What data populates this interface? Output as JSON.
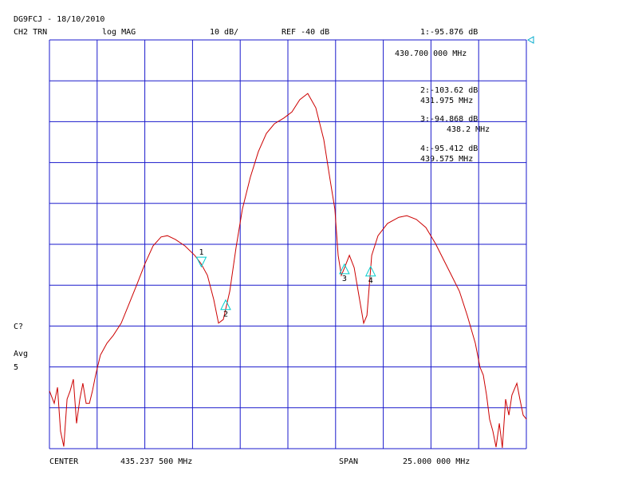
{
  "chart_data": {
    "type": "line",
    "header": "DG9FCJ - 18/10/2010",
    "channel": "CH2 TRN",
    "format": "log MAG",
    "scale": "10 dB/",
    "reference": "REF -40 dB",
    "center_label": "CENTER",
    "center_value": "435.237 500 MHz",
    "span_label": "SPAN",
    "span_value": "25.000 000 MHz",
    "side_labels": [
      "C?",
      "Avg",
      "5"
    ],
    "color": "#cc0000",
    "grid_color": "#1a1acc",
    "marker_color": "#00cccc",
    "grid": true,
    "xlim": [
      422.7375,
      447.7375
    ],
    "ylim": [
      -140,
      -40
    ],
    "xticks": [
      422.7375,
      425.2375,
      427.7375,
      430.2375,
      432.7375,
      435.2375,
      437.7375,
      440.2375,
      442.7375,
      445.2375,
      447.7375
    ],
    "yticks": [
      -140,
      -130,
      -120,
      -110,
      -100,
      -90,
      -80,
      -70,
      -60,
      -50,
      -40
    ],
    "x": [
      422.74,
      422.99,
      423.16,
      423.32,
      423.49,
      423.66,
      423.82,
      423.99,
      424.16,
      424.33,
      424.49,
      424.66,
      424.83,
      424.99,
      425.16,
      425.41,
      425.75,
      426.08,
      426.5,
      426.92,
      427.34,
      427.75,
      428.17,
      428.59,
      428.92,
      429.34,
      429.84,
      430.35,
      430.68,
      431.02,
      431.35,
      431.6,
      431.85,
      432.19,
      432.52,
      432.85,
      433.27,
      433.69,
      434.11,
      434.53,
      435.03,
      435.45,
      435.86,
      436.28,
      436.7,
      437.12,
      437.45,
      437.7,
      437.87,
      438.04,
      438.21,
      438.46,
      438.71,
      438.96,
      439.21,
      439.38,
      439.63,
      439.96,
      440.46,
      441.05,
      441.47,
      441.97,
      442.47,
      442.97,
      443.39,
      443.81,
      444.23,
      444.64,
      445.06,
      445.31,
      445.48,
      445.65,
      445.81,
      445.98,
      446.15,
      446.32,
      446.48,
      446.65,
      446.82,
      446.98,
      447.24,
      447.4,
      447.57,
      447.74
    ],
    "values": [
      -125.9,
      -128.9,
      -125.0,
      -135.7,
      -139.5,
      -127.9,
      -125.9,
      -123.0,
      -133.8,
      -127.9,
      -124.0,
      -128.9,
      -128.9,
      -125.9,
      -122.0,
      -117.1,
      -114.2,
      -112.3,
      -109.3,
      -104.5,
      -99.6,
      -94.7,
      -90.4,
      -88.2,
      -87.9,
      -88.8,
      -90.4,
      -92.7,
      -94.7,
      -97.6,
      -103.5,
      -109.3,
      -108.4,
      -101.5,
      -90.8,
      -81.4,
      -73.6,
      -67.3,
      -62.9,
      -60.5,
      -59.1,
      -57.6,
      -54.6,
      -53.1,
      -56.6,
      -64.4,
      -74.2,
      -81.4,
      -92.7,
      -97.6,
      -95.7,
      -92.7,
      -95.7,
      -102.5,
      -109.3,
      -107.4,
      -92.7,
      -87.9,
      -84.9,
      -83.4,
      -83.0,
      -83.9,
      -85.9,
      -89.8,
      -93.7,
      -97.6,
      -101.5,
      -107.4,
      -114.2,
      -120.1,
      -122.0,
      -126.9,
      -132.8,
      -135.7,
      -139.6,
      -133.8,
      -139.8,
      -127.9,
      -131.8,
      -126.9,
      -124.0,
      -127.9,
      -131.8,
      -132.8
    ],
    "markers": [
      {
        "label": "1",
        "readout": "1:-95.876 dB",
        "freq_label": "430.700 000 MHz",
        "x": 430.7,
        "y": -95.876
      },
      {
        "label": "2",
        "readout": "2:-103.62 dB",
        "freq_label": "431.975 MHz",
        "x": 431.975,
        "y": -103.62
      },
      {
        "label": "3",
        "readout": "3:-94.868 dB",
        "freq_label": "438.2 MHz",
        "x": 438.2,
        "y": -94.868
      },
      {
        "label": "4",
        "readout": "4:-95.412 dB",
        "freq_label": "439.575 MHz",
        "x": 439.575,
        "y": -95.412
      }
    ]
  }
}
